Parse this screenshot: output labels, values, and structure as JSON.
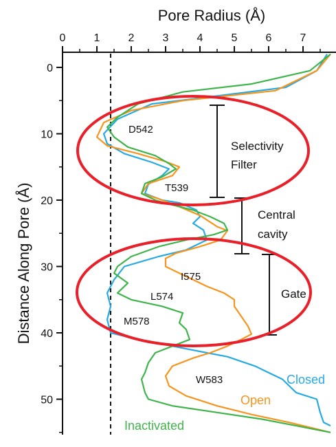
{
  "chart_data": {
    "type": "line",
    "title": "",
    "xlabel": "Pore Radius (Å)",
    "ylabel": "Distance Along Pore (Å)",
    "xlim": [
      0,
      7.8
    ],
    "ylim": [
      -2,
      55
    ],
    "x_axis_position": "top",
    "y_reversed": true,
    "x_ticks": [
      0,
      1,
      2,
      3,
      4,
      5,
      6,
      7
    ],
    "y_ticks": [
      0,
      10,
      20,
      30,
      40,
      50
    ],
    "grid": false,
    "reference_line": {
      "x": 1.4,
      "style": "dashed"
    },
    "series": [
      {
        "name": "Closed",
        "color": "#27aae1",
        "points": [
          [
            7.7,
            -2
          ],
          [
            7.4,
            0.5
          ],
          [
            6.5,
            3
          ],
          [
            4.5,
            4.3
          ],
          [
            2.6,
            5.5
          ],
          [
            1.6,
            7.8
          ],
          [
            1.2,
            10
          ],
          [
            1.3,
            11.5
          ],
          [
            1.8,
            13
          ],
          [
            2.6,
            14.3
          ],
          [
            3.1,
            15.3
          ],
          [
            2.9,
            16.3
          ],
          [
            2.5,
            17.6
          ],
          [
            2.4,
            19
          ],
          [
            2.9,
            20
          ],
          [
            3.4,
            20.4
          ],
          [
            3.9,
            21.5
          ],
          [
            4.0,
            22.5
          ],
          [
            3.8,
            23.5
          ],
          [
            4.1,
            24.5
          ],
          [
            4.2,
            26
          ],
          [
            3.6,
            27.5
          ],
          [
            2.8,
            28.5
          ],
          [
            1.8,
            30
          ],
          [
            1.5,
            32
          ],
          [
            1.3,
            34
          ],
          [
            1.4,
            36
          ],
          [
            1.3,
            38
          ],
          [
            1.4,
            40
          ],
          [
            2.2,
            41
          ],
          [
            3.2,
            42
          ],
          [
            4.2,
            43
          ],
          [
            4.8,
            43.6
          ],
          [
            5.6,
            45
          ],
          [
            6.4,
            47
          ],
          [
            6.8,
            49
          ],
          [
            7.4,
            50
          ],
          [
            7.5,
            52
          ],
          [
            7.6,
            53.5
          ],
          [
            7.8,
            54
          ]
        ]
      },
      {
        "name": "Open",
        "color": "#f7941d",
        "points": [
          [
            7.8,
            -2
          ],
          [
            7.4,
            0.5
          ],
          [
            6.2,
            3.5
          ],
          [
            3.5,
            5
          ],
          [
            2.0,
            6.5
          ],
          [
            1.2,
            8.3
          ],
          [
            1.0,
            10.5
          ],
          [
            1.3,
            11.8
          ],
          [
            2.2,
            13
          ],
          [
            3.0,
            14.2
          ],
          [
            3.4,
            15
          ],
          [
            3.2,
            16.3
          ],
          [
            2.5,
            17.5
          ],
          [
            2.3,
            19
          ],
          [
            2.8,
            19.8
          ],
          [
            3.4,
            21
          ],
          [
            4.0,
            22.3
          ],
          [
            4.5,
            24
          ],
          [
            4.8,
            24.6
          ],
          [
            4.6,
            26
          ],
          [
            4.0,
            27
          ],
          [
            3.3,
            28
          ],
          [
            3.0,
            28.8
          ],
          [
            3.0,
            30
          ],
          [
            3.4,
            31
          ],
          [
            3.8,
            32
          ],
          [
            4.2,
            33
          ],
          [
            4.7,
            34
          ],
          [
            5.0,
            35
          ],
          [
            5.0,
            36
          ],
          [
            5.2,
            37.5
          ],
          [
            5.4,
            39
          ],
          [
            5.5,
            40.2
          ],
          [
            5.2,
            41
          ],
          [
            4.8,
            42
          ],
          [
            4.3,
            43
          ],
          [
            3.8,
            43.8
          ],
          [
            3.2,
            45
          ],
          [
            3.0,
            46.5
          ],
          [
            3.1,
            48
          ],
          [
            3.6,
            49.5
          ],
          [
            4.5,
            51
          ],
          [
            5.5,
            52.3
          ],
          [
            6.6,
            53.5
          ],
          [
            7.4,
            54.5
          ],
          [
            7.8,
            55
          ]
        ]
      },
      {
        "name": "Inactivated",
        "color": "#3fb44a",
        "points": [
          [
            7.8,
            -2
          ],
          [
            7.2,
            0.5
          ],
          [
            5.5,
            2.5
          ],
          [
            3.5,
            3.7
          ],
          [
            2.2,
            5.5
          ],
          [
            1.6,
            7.5
          ],
          [
            1.3,
            9
          ],
          [
            1.5,
            10.5
          ],
          [
            1.9,
            12
          ],
          [
            2.7,
            13.3
          ],
          [
            3.1,
            14.5
          ],
          [
            3.3,
            15.3
          ],
          [
            2.9,
            16.5
          ],
          [
            2.4,
            17.5
          ],
          [
            2.3,
            19
          ],
          [
            2.7,
            20
          ],
          [
            3.1,
            20.6
          ],
          [
            3.8,
            21.5
          ],
          [
            4.3,
            22.5
          ],
          [
            4.7,
            23.5
          ],
          [
            4.8,
            24.5
          ],
          [
            4.4,
            25.2
          ],
          [
            3.6,
            26
          ],
          [
            2.8,
            27
          ],
          [
            2.0,
            28.5
          ],
          [
            1.6,
            30
          ],
          [
            1.5,
            31
          ],
          [
            1.9,
            32.5
          ],
          [
            1.6,
            34
          ],
          [
            2.0,
            35
          ],
          [
            2.9,
            36
          ],
          [
            3.5,
            37
          ],
          [
            3.4,
            38.5
          ],
          [
            3.6,
            39.5
          ],
          [
            3.7,
            41
          ],
          [
            3.2,
            42
          ],
          [
            2.7,
            43
          ],
          [
            2.5,
            44.5
          ],
          [
            2.4,
            46
          ],
          [
            2.3,
            47
          ],
          [
            2.4,
            49
          ],
          [
            2.5,
            50
          ],
          [
            3.2,
            51
          ],
          [
            4.5,
            52
          ],
          [
            5.8,
            53
          ],
          [
            6.8,
            54
          ],
          [
            7.8,
            55
          ]
        ]
      }
    ],
    "residue_labels": [
      "D542",
      "T539",
      "I575",
      "L574",
      "M578",
      "W583"
    ],
    "regions": [
      {
        "label_lines": [
          "Selectivity",
          "Filter"
        ],
        "range": [
          5.7,
          19.7
        ]
      },
      {
        "label_lines": [
          "Central",
          "cavity"
        ],
        "range": [
          19.7,
          28.2
        ]
      },
      {
        "label_lines": [
          "Gate"
        ],
        "range": [
          28.2,
          40.5
        ]
      }
    ]
  }
}
